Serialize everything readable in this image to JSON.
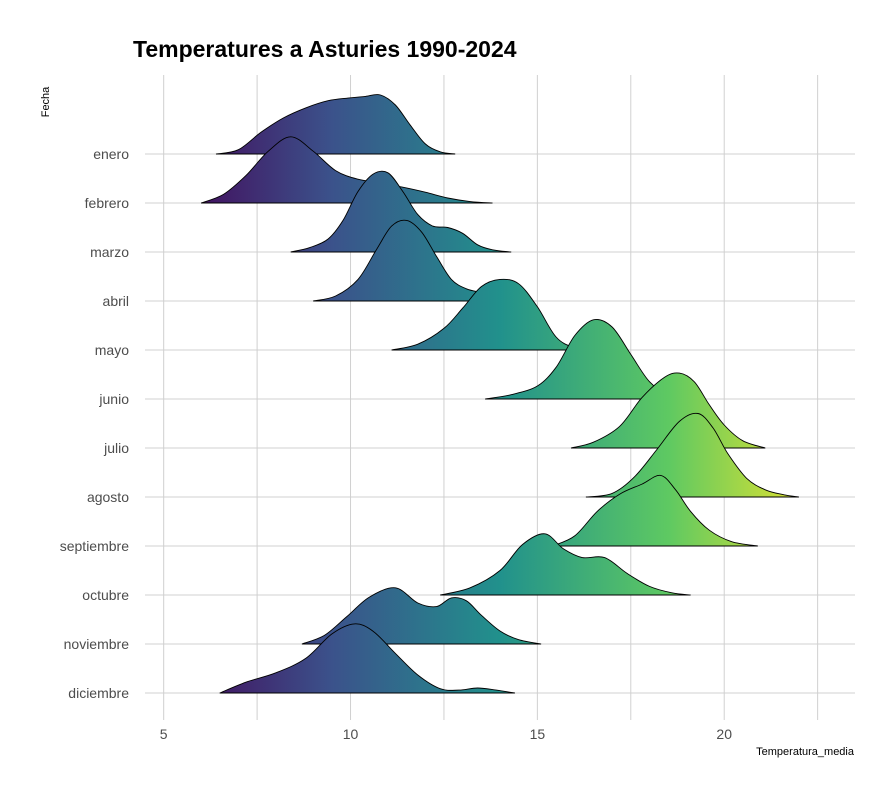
{
  "chart_data": {
    "type": "ridgeline",
    "title": "Temperatures a Asturies 1990-2024",
    "xlabel": "Temperatura_media",
    "ylabel": "Fecha",
    "xlim": [
      4.5,
      23.5
    ],
    "x_ticks": [
      5,
      10,
      15,
      20
    ],
    "grid": true,
    "color_scale": [
      "#440154",
      "#3b528b",
      "#21918c",
      "#5ec962",
      "#fde725"
    ],
    "color_domain": [
      5,
      23
    ],
    "categories": [
      "enero",
      "febrero",
      "marzo",
      "abril",
      "mayo",
      "junio",
      "julio",
      "agosto",
      "septiembre",
      "octubre",
      "noviembre",
      "diciembre"
    ],
    "series": [
      {
        "category": "enero",
        "x": [
          6.4,
          7,
          7.6,
          8.2,
          8.8,
          9.4,
          10,
          10.4,
          10.8,
          11.2,
          11.6,
          12,
          12.4,
          12.8
        ],
        "density": [
          0,
          0.06,
          0.3,
          0.5,
          0.64,
          0.74,
          0.78,
          0.8,
          0.82,
          0.68,
          0.4,
          0.14,
          0.03,
          0
        ]
      },
      {
        "category": "febrero",
        "x": [
          6,
          6.6,
          7.2,
          7.8,
          8.4,
          9,
          9.6,
          10.2,
          10.8,
          11.4,
          12,
          12.6,
          13.2,
          13.8
        ],
        "density": [
          0,
          0.12,
          0.38,
          0.72,
          0.92,
          0.72,
          0.45,
          0.33,
          0.28,
          0.22,
          0.15,
          0.07,
          0.02,
          0
        ]
      },
      {
        "category": "marzo",
        "x": [
          8.4,
          8.9,
          9.4,
          9.8,
          10.2,
          10.6,
          11,
          11.4,
          11.8,
          12.2,
          12.6,
          13,
          13.4,
          13.8,
          14.3
        ],
        "density": [
          0,
          0.06,
          0.18,
          0.44,
          0.84,
          1.08,
          1.1,
          0.84,
          0.52,
          0.36,
          0.34,
          0.26,
          0.1,
          0.03,
          0
        ]
      },
      {
        "category": "abril",
        "x": [
          9,
          9.6,
          10.2,
          10.7,
          11.1,
          11.5,
          11.9,
          12.3,
          12.7,
          13.1,
          13.5,
          13.9,
          14.4,
          14.8
        ],
        "density": [
          0,
          0.07,
          0.3,
          0.72,
          1.04,
          1.12,
          0.96,
          0.62,
          0.3,
          0.17,
          0.12,
          0.08,
          0.03,
          0
        ]
      },
      {
        "category": "mayo",
        "x": [
          11.1,
          11.8,
          12.5,
          13,
          13.5,
          14,
          14.5,
          15,
          15.5,
          16,
          16.5
        ],
        "density": [
          0,
          0.08,
          0.3,
          0.58,
          0.88,
          0.98,
          0.92,
          0.6,
          0.18,
          0.03,
          0
        ]
      },
      {
        "category": "junio",
        "x": [
          13.6,
          14.3,
          15,
          15.5,
          16,
          16.5,
          17,
          17.5,
          18,
          18.5,
          19
        ],
        "density": [
          0,
          0.06,
          0.18,
          0.44,
          0.88,
          1.1,
          1.0,
          0.62,
          0.24,
          0.06,
          0
        ]
      },
      {
        "category": "julio",
        "x": [
          15.9,
          16.5,
          17.2,
          17.8,
          18.4,
          18.8,
          19.2,
          19.6,
          20,
          20.5,
          21.1
        ],
        "density": [
          0,
          0.08,
          0.3,
          0.7,
          0.98,
          1.04,
          0.92,
          0.6,
          0.32,
          0.1,
          0
        ]
      },
      {
        "category": "agosto",
        "x": [
          16.3,
          17,
          17.6,
          18.2,
          18.8,
          19.3,
          19.7,
          20.1,
          20.6,
          21.1,
          21.6,
          22
        ],
        "density": [
          0,
          0.05,
          0.28,
          0.66,
          1.05,
          1.16,
          0.96,
          0.6,
          0.26,
          0.1,
          0.03,
          0
        ]
      },
      {
        "category": "septiembre",
        "x": [
          15.4,
          16,
          16.6,
          17.2,
          17.8,
          18.3,
          18.7,
          19.1,
          19.6,
          20.2,
          20.9
        ],
        "density": [
          0,
          0.14,
          0.48,
          0.72,
          0.86,
          0.98,
          0.78,
          0.48,
          0.22,
          0.06,
          0
        ]
      },
      {
        "category": "octubre",
        "x": [
          12.4,
          13.2,
          14,
          14.6,
          15.2,
          15.7,
          16.2,
          16.8,
          17.4,
          18,
          18.6,
          19.1
        ],
        "density": [
          0,
          0.1,
          0.34,
          0.7,
          0.85,
          0.64,
          0.52,
          0.52,
          0.3,
          0.12,
          0.03,
          0
        ]
      },
      {
        "category": "noviembre",
        "x": [
          8.7,
          9.3,
          9.9,
          10.5,
          11.2,
          11.8,
          12.3,
          12.7,
          13.1,
          13.5,
          14,
          14.5,
          15.1
        ],
        "density": [
          0,
          0.12,
          0.38,
          0.65,
          0.78,
          0.57,
          0.52,
          0.64,
          0.6,
          0.4,
          0.18,
          0.06,
          0
        ]
      },
      {
        "category": "diciembre",
        "x": [
          6.5,
          7.2,
          8,
          8.8,
          9.5,
          10.1,
          10.6,
          11.2,
          11.8,
          12.4,
          12.9,
          13.4,
          13.9,
          14.4
        ],
        "density": [
          0,
          0.15,
          0.28,
          0.48,
          0.82,
          0.96,
          0.86,
          0.55,
          0.25,
          0.06,
          0.04,
          0.07,
          0.04,
          0
        ]
      }
    ]
  }
}
